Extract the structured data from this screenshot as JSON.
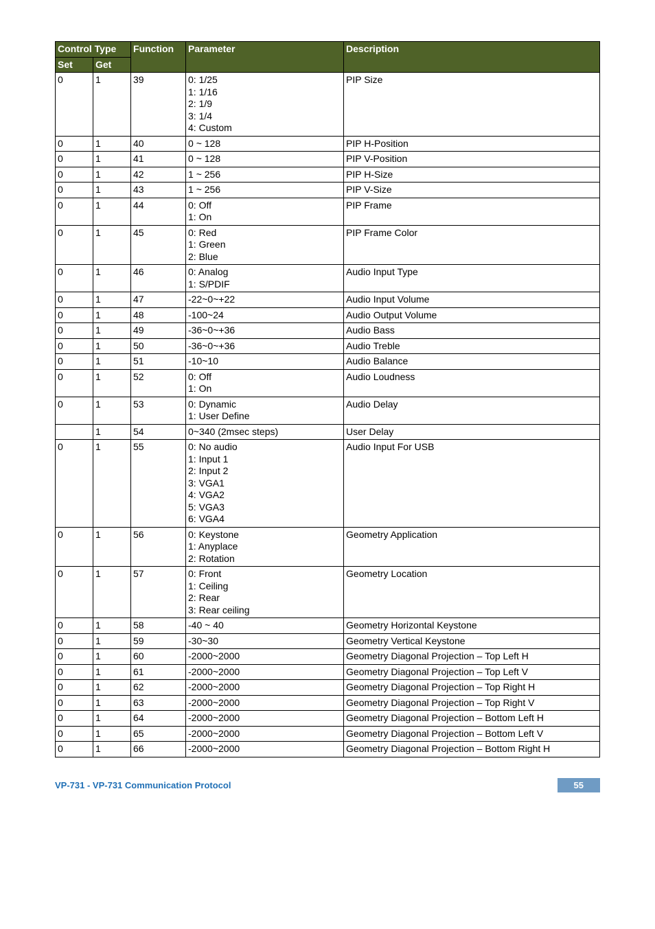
{
  "header": {
    "control_type": "Control Type",
    "set": "Set",
    "get": "Get",
    "function": "Function",
    "parameter": "Parameter",
    "description": "Description"
  },
  "rows": [
    {
      "set": "0",
      "get": "1",
      "func": "39",
      "param": "0: 1/25\n1: 1/16\n2: 1/9\n3: 1/4\n4: Custom",
      "desc": "PIP Size"
    },
    {
      "set": "0",
      "get": "1",
      "func": "40",
      "param": "0 ~ 128",
      "desc": "PIP H-Position"
    },
    {
      "set": "0",
      "get": "1",
      "func": "41",
      "param": "0 ~ 128",
      "desc": "PIP V-Position"
    },
    {
      "set": "0",
      "get": "1",
      "func": "42",
      "param": "1 ~ 256",
      "desc": "PIP H-Size"
    },
    {
      "set": "0",
      "get": "1",
      "func": "43",
      "param": "1 ~ 256",
      "desc": "PIP V-Size"
    },
    {
      "set": "0",
      "get": "1",
      "func": "44",
      "param": "0: Off\n1: On",
      "desc": "PIP Frame"
    },
    {
      "set": "0",
      "get": "1",
      "func": "45",
      "param": "0: Red\n1: Green\n2: Blue",
      "desc": "PIP Frame Color"
    },
    {
      "set": "0",
      "get": "1",
      "func": "46",
      "param": "0: Analog\n1: S/PDIF",
      "desc": "Audio Input Type"
    },
    {
      "set": "0",
      "get": "1",
      "func": "47",
      "param": "-22~0~+22",
      "desc": "Audio Input Volume"
    },
    {
      "set": "0",
      "get": "1",
      "func": "48",
      "param": "-100~24",
      "desc": "Audio Output Volume"
    },
    {
      "set": "0",
      "get": "1",
      "func": "49",
      "param": "-36~0~+36",
      "desc": "Audio Bass"
    },
    {
      "set": "0",
      "get": "1",
      "func": "50",
      "param": "-36~0~+36",
      "desc": "Audio Treble"
    },
    {
      "set": "0",
      "get": "1",
      "func": "51",
      "param": "-10~10",
      "desc": "Audio Balance"
    },
    {
      "set": "0",
      "get": "1",
      "func": "52",
      "param": "0: Off\n1: On",
      "desc": "Audio Loudness"
    },
    {
      "set": "0",
      "get": "1",
      "func": "53",
      "param": "0: Dynamic\n1: User Define",
      "desc": "Audio Delay"
    },
    {
      "set": "",
      "get": "1",
      "func": "54",
      "param": "0~340 (2msec steps)",
      "desc": "User Delay"
    },
    {
      "set": "0",
      "get": "1",
      "func": "55",
      "param": "0: No audio\n1: Input 1\n2: Input 2\n3: VGA1\n4: VGA2\n5: VGA3\n6: VGA4",
      "desc": "Audio Input For USB"
    },
    {
      "set": "0",
      "get": "1",
      "func": "56",
      "param": "0: Keystone\n1: Anyplace\n2: Rotation",
      "desc": "Geometry Application"
    },
    {
      "set": "0",
      "get": "1",
      "func": "57",
      "param": "0: Front\n1: Ceiling\n2: Rear\n3: Rear ceiling",
      "desc": "Geometry  Location"
    },
    {
      "set": "0",
      "get": "1",
      "func": "58",
      "param": "-40 ~ 40",
      "desc": "Geometry Horizontal Keystone"
    },
    {
      "set": "0",
      "get": "1",
      "func": "59",
      "param": "-30~30",
      "desc": "Geometry Vertical Keystone"
    },
    {
      "set": "0",
      "get": "1",
      "func": "60",
      "param": "-2000~2000",
      "desc": "Geometry Diagonal Projection – Top Left H"
    },
    {
      "set": "0",
      "get": "1",
      "func": "61",
      "param": "-2000~2000",
      "desc": "Geometry Diagonal Projection – Top Left V"
    },
    {
      "set": "0",
      "get": "1",
      "func": "62",
      "param": "-2000~2000",
      "desc": "Geometry Diagonal Projection – Top Right H"
    },
    {
      "set": "0",
      "get": "1",
      "func": "63",
      "param": "-2000~2000",
      "desc": "Geometry Diagonal Projection – Top Right V"
    },
    {
      "set": "0",
      "get": "1",
      "func": "64",
      "param": "-2000~2000",
      "desc": "Geometry Diagonal Projection – Bottom Left H"
    },
    {
      "set": "0",
      "get": "1",
      "func": "65",
      "param": "-2000~2000",
      "desc": "Geometry Diagonal Projection – Bottom Left V"
    },
    {
      "set": "0",
      "get": "1",
      "func": "66",
      "param": "-2000~2000",
      "desc": "Geometry Diagonal Projection – Bottom Right H"
    }
  ],
  "footer": {
    "left": "VP-731 - VP-731 Communication Protocol",
    "page": "55"
  },
  "colors": {
    "header_bg": "#4f6228",
    "header_fg": "#ffffff",
    "footer_left": "#1f6fb5",
    "page_badge_bg": "#6f9bc4",
    "page_badge_fg": "#ffffff"
  }
}
